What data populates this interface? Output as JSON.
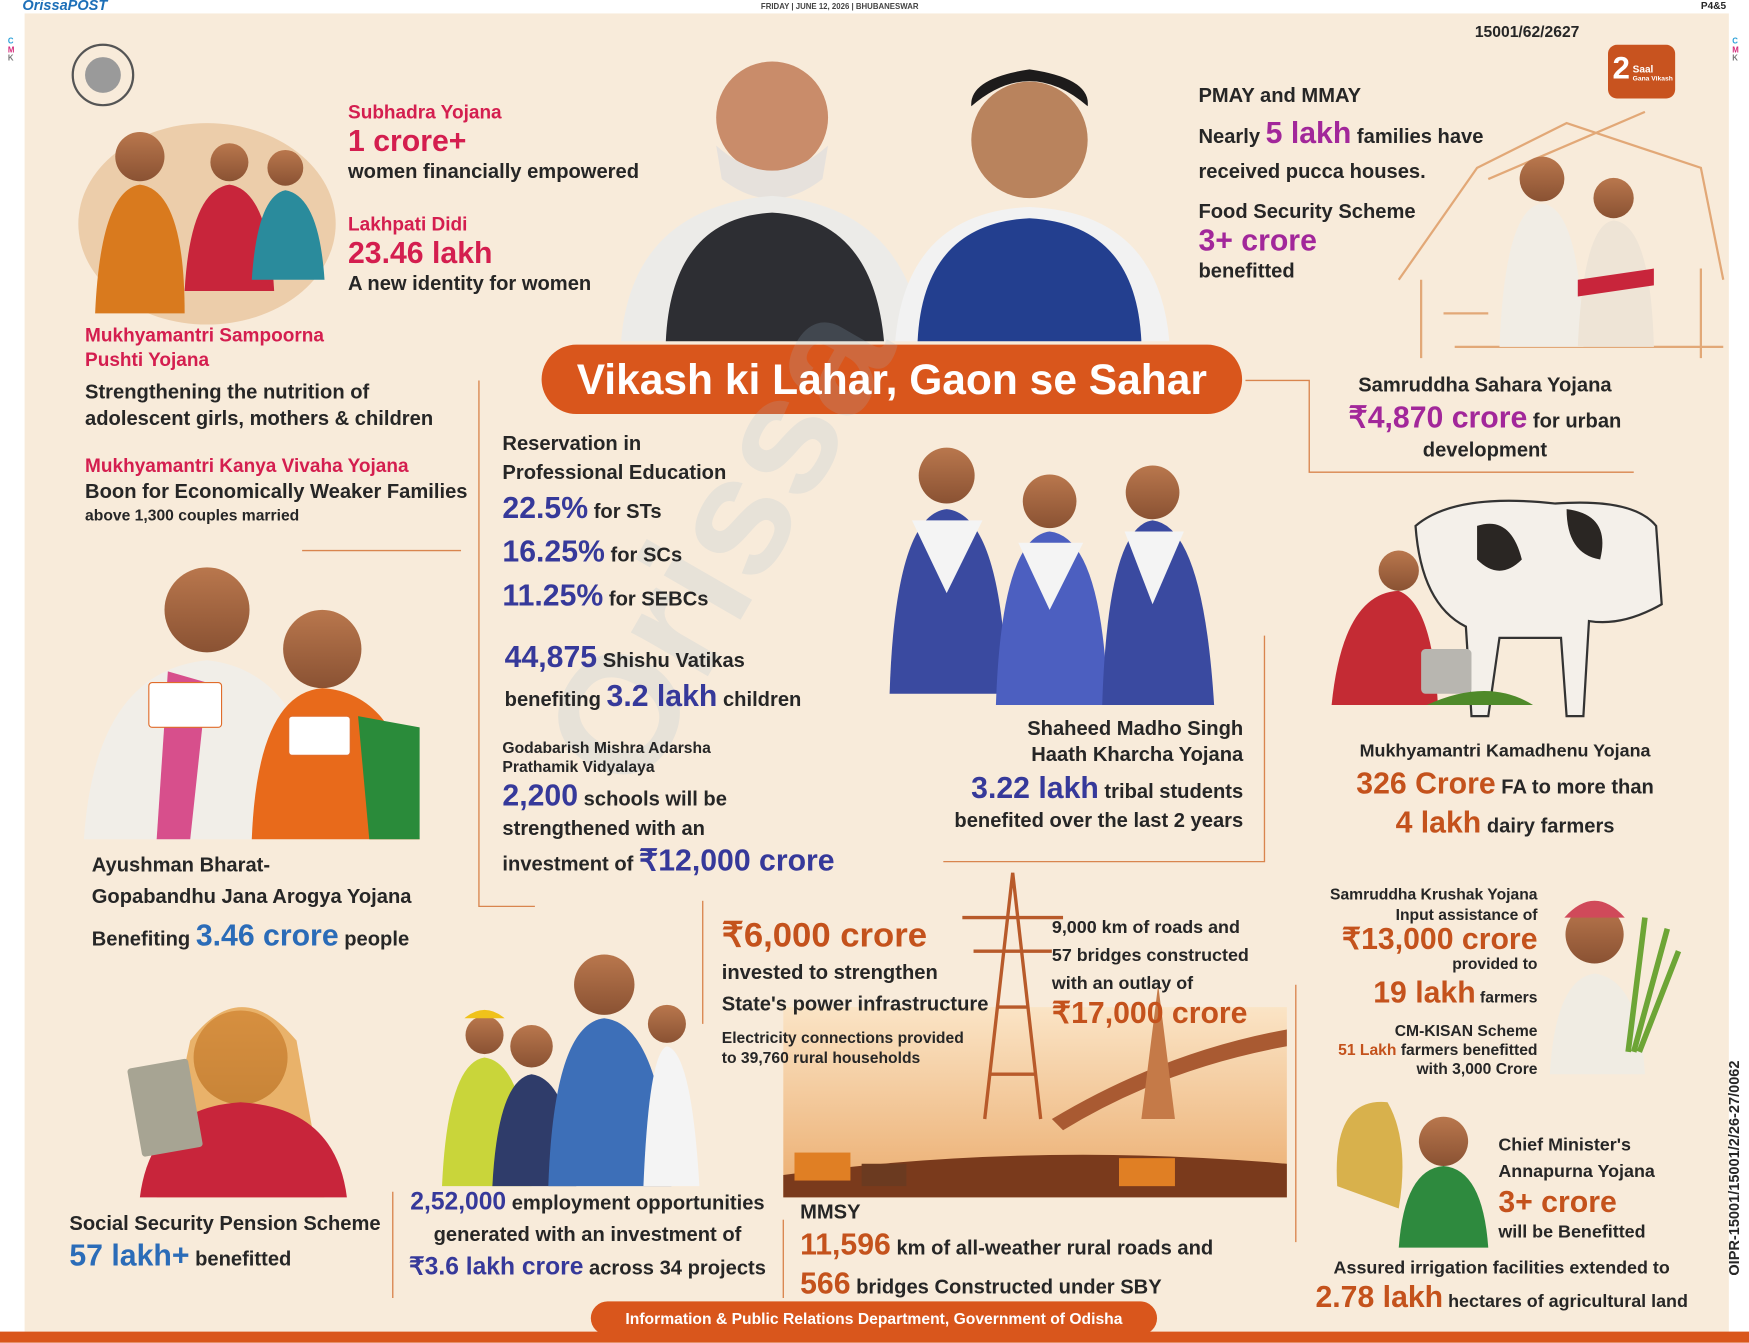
{
  "header": {
    "brand": "OrissaPOST",
    "dateline": "FRIDAY | JUNE 12, 2026 | BHUBANESWAR",
    "page": "P4&5",
    "code": "15001/62/2627",
    "registration": [
      "C",
      "M",
      "K"
    ]
  },
  "badge": {
    "number": "2",
    "line1": "Saal",
    "line2": "Gana Vikash"
  },
  "title": "Vikash ki Lahar, Gaon se Sahar",
  "watermark": "Orissa",
  "subhadra": {
    "name": "Subhadra Yojana",
    "figure": "1 crore+",
    "desc": "women financially empowered"
  },
  "lakhpati": {
    "name": "Lakhpati Didi",
    "figure": "23.46 lakh",
    "desc": "A new identity for women"
  },
  "pushti": {
    "name": [
      "Mukhyamantri Sampoorna",
      "Pushti Yojana"
    ],
    "desc": [
      "Strengthening the nutrition of",
      "adolescent girls, mothers & children"
    ]
  },
  "kanya": {
    "name": "Mukhyamantri Kanya Vivaha Yojana",
    "desc": "Boon for Economically Weaker Families",
    "note": "above 1,300 couples married"
  },
  "ayushman": {
    "name": [
      "Ayushman Bharat-",
      "Gopabandhu Jana Arogya Yojana"
    ],
    "pre": "Benefiting",
    "figure": "3.46 crore",
    "post": "people"
  },
  "pension": {
    "name": "Social Security Pension Scheme",
    "figure": "57 lakh+",
    "desc": "benefitted"
  },
  "reservation": {
    "heading": [
      "Reservation in",
      "Professional Education"
    ],
    "rows": [
      {
        "figure": "22.5%",
        "label": "for STs"
      },
      {
        "figure": "16.25%",
        "label": "for SCs"
      },
      {
        "figure": "11.25%",
        "label": "for SEBCs"
      }
    ]
  },
  "shishu": {
    "figure": "44,875",
    "label": "Shishu Vatikas",
    "pre": "benefiting",
    "figure2": "3.2 lakh",
    "post": "children"
  },
  "godabarish": {
    "name": [
      "Godabarish Mishra Adarsha",
      "Prathamik Vidyalaya"
    ],
    "figure": "2,200",
    "post": "schools will be",
    "line2": "strengthened with an",
    "line3": "investment of",
    "figure2": "₹12,000 crore"
  },
  "madho": {
    "name": [
      "Shaheed Madho Singh",
      "Haath Kharcha Yojana"
    ],
    "figure": "3.22 lakh",
    "post": "tribal students",
    "line2": "benefited over the last 2 years"
  },
  "pmay": {
    "name": "PMAY and MMAY",
    "pre": "Nearly",
    "figure": "5 lakh",
    "post": "families have",
    "line2": "received pucca houses."
  },
  "food": {
    "name": "Food Security Scheme",
    "figure": "3+ crore",
    "desc": "benefitted"
  },
  "sahara": {
    "name": "Samruddha Sahara Yojana",
    "figure": "₹4,870 crore",
    "post": "for urban",
    "line2": "development"
  },
  "kamadhenu": {
    "name": "Mukhyamantri Kamadhenu Yojana",
    "figure": "326 Crore",
    "post": "FA to more than",
    "figure2": "4 lakh",
    "post2": "dairy farmers"
  },
  "krushak": {
    "name": "Samruddha Krushak Yojana",
    "line1": "Input assistance of",
    "figure": "₹13,000 crore",
    "line2": "provided to",
    "figure2": "19 lakh",
    "post2": "farmers"
  },
  "cmkisan": {
    "name": "CM-KISAN Scheme",
    "figure": "51 Lakh",
    "post": "farmers benefitted",
    "line2": "with 3,000 Crore"
  },
  "annapurna": {
    "name": [
      "Chief Minister's",
      "Annapurna Yojana"
    ],
    "figure": "3+ crore",
    "desc": "will be Benefitted"
  },
  "irrigation": {
    "line1": "Assured irrigation facilities extended to",
    "figure": "2.78 lakh",
    "post": "hectares of agricultural land"
  },
  "power": {
    "figure": "₹6,000 crore",
    "desc": [
      "invested to strengthen",
      "State's power infrastructure"
    ],
    "note": [
      "Electricity connections provided",
      "to 39,760 rural households"
    ]
  },
  "roads": {
    "desc": [
      "9,000 km of roads and",
      "57 bridges constructed",
      "with an outlay of"
    ],
    "figure": "₹17,000 crore"
  },
  "employment": {
    "figure": "2,52,000",
    "post": "employment opportunities",
    "line2": "generated with an investment of",
    "figure2": "₹3.6 lakh crore",
    "post2": "across 34 projects"
  },
  "mmsy": {
    "name": "MMSY",
    "figure": "11,596",
    "post": "km of all-weather rural roads and",
    "figure2": "566",
    "post2": "bridges Constructed under SBY"
  },
  "footer": "Information & Public Relations Department, Government of Odisha",
  "side_code": "OIPR-15001/15001/2/26-27/0062"
}
